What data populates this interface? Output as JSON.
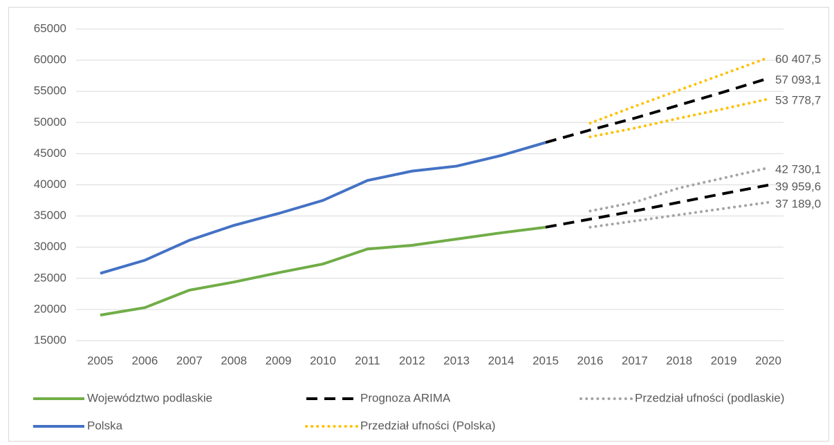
{
  "chart_data": {
    "type": "line",
    "categories": [
      "2005",
      "2006",
      "2007",
      "2008",
      "2009",
      "2010",
      "2011",
      "2012",
      "2013",
      "2014",
      "2015",
      "2016",
      "2017",
      "2018",
      "2019",
      "2020"
    ],
    "series": [
      {
        "name": "Województwo podlaskie",
        "color": "#70ad47",
        "style": "solid",
        "values": [
          19100,
          20300,
          23100,
          24400,
          25900,
          27300,
          29700,
          30300,
          31300,
          32300,
          33200,
          null,
          null,
          null,
          null,
          null
        ]
      },
      {
        "name": "Prognoza ARIMA",
        "color": "#000000",
        "style": "dashed",
        "values": [
          null,
          null,
          null,
          null,
          null,
          null,
          null,
          null,
          null,
          null,
          46800,
          48800,
          50700,
          52800,
          54900,
          57093.1
        ],
        "value_labels": [
          null,
          null,
          null,
          null,
          null,
          null,
          null,
          null,
          null,
          null,
          null,
          null,
          null,
          null,
          null,
          "57 093,1"
        ]
      },
      {
        "name": "Przedział ufności (podlaskie)",
        "color": "#a5a5a5",
        "style": "dotted",
        "values": [
          null,
          null,
          null,
          null,
          null,
          null,
          null,
          null,
          null,
          null,
          null,
          35800,
          37200,
          39500,
          41100,
          42730.1
        ],
        "value_labels": [
          null,
          null,
          null,
          null,
          null,
          null,
          null,
          null,
          null,
          null,
          null,
          null,
          null,
          null,
          null,
          "42 730,1"
        ]
      },
      {
        "name": "Polska",
        "color": "#4472c4",
        "style": "solid",
        "values": [
          25800,
          27900,
          31100,
          33500,
          35400,
          37500,
          40700,
          42200,
          43000,
          44700,
          46800,
          null,
          null,
          null,
          null,
          null
        ]
      },
      {
        "name": "Przedział ufności (Polska)",
        "color": "#ffc000",
        "style": "dotted",
        "values": [
          null,
          null,
          null,
          null,
          null,
          null,
          null,
          null,
          null,
          null,
          null,
          49900,
          52600,
          55200,
          57800,
          60407.5
        ],
        "value_labels": [
          null,
          null,
          null,
          null,
          null,
          null,
          null,
          null,
          null,
          null,
          null,
          null,
          null,
          null,
          null,
          "60 407,5"
        ]
      },
      {
        "color": "#ffc000",
        "style": "dotted",
        "values": [
          null,
          null,
          null,
          null,
          null,
          null,
          null,
          null,
          null,
          null,
          null,
          47700,
          49100,
          50700,
          52200,
          53778.7
        ],
        "value_labels": [
          null,
          null,
          null,
          null,
          null,
          null,
          null,
          null,
          null,
          null,
          null,
          null,
          null,
          null,
          null,
          "53 778,7"
        ]
      },
      {
        "color": "#000000",
        "style": "dashed",
        "values": [
          null,
          null,
          null,
          null,
          null,
          null,
          null,
          null,
          null,
          null,
          33200,
          34500,
          35800,
          37200,
          38600,
          39959.6
        ],
        "value_labels": [
          null,
          null,
          null,
          null,
          null,
          null,
          null,
          null,
          null,
          null,
          null,
          null,
          null,
          null,
          null,
          "39 959,6"
        ]
      },
      {
        "color": "#a5a5a5",
        "style": "dotted",
        "values": [
          null,
          null,
          null,
          null,
          null,
          null,
          null,
          null,
          null,
          null,
          null,
          33200,
          34200,
          35200,
          36200,
          37189.0
        ],
        "value_labels": [
          null,
          null,
          null,
          null,
          null,
          null,
          null,
          null,
          null,
          null,
          null,
          null,
          null,
          null,
          null,
          "37 189,0"
        ]
      }
    ],
    "ylim": [
      15000,
      65000
    ],
    "yticks": [
      15000,
      20000,
      25000,
      30000,
      35000,
      40000,
      45000,
      50000,
      55000,
      60000,
      65000
    ],
    "grid": true,
    "legend": "bottom"
  }
}
